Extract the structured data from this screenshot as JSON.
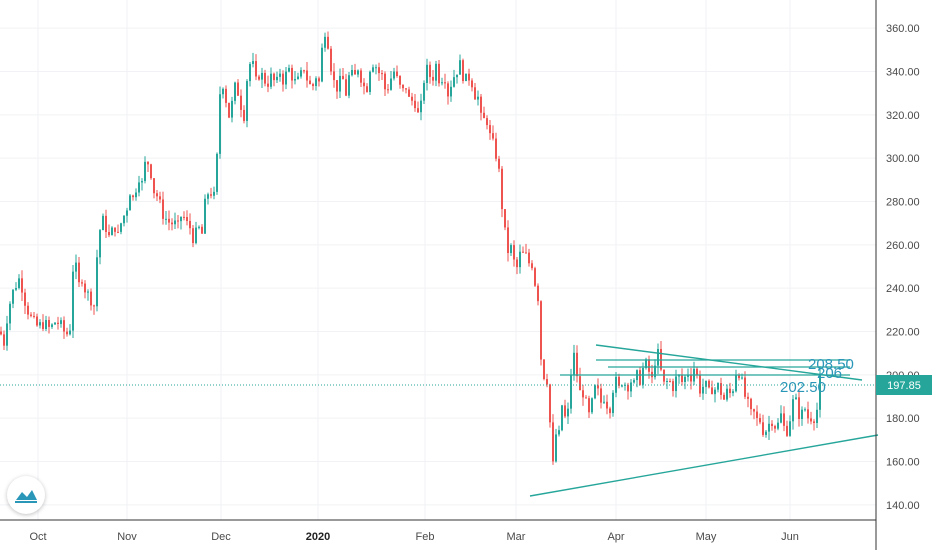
{
  "chart_data": {
    "type": "candlestick",
    "x_ticks": [
      "Oct",
      "Nov",
      "Dec",
      "2020",
      "Feb",
      "Mar",
      "Apr",
      "May",
      "Jun"
    ],
    "x_tick_bold": "2020",
    "y_ticks": [
      "140.00",
      "160.00",
      "180.00",
      "200.00",
      "220.00",
      "240.00",
      "260.00",
      "280.00",
      "300.00",
      "320.00",
      "340.00",
      "360.00"
    ],
    "ylim": [
      133,
      373
    ],
    "last_price": "197.85",
    "grid": true,
    "colors": {
      "up": "#26a69a",
      "down": "#ef5350",
      "line": "#26a69a",
      "annotation": "#2a96b8",
      "price_line": "#26a69a"
    },
    "price_path": [
      [
        0,
        220
      ],
      [
        4,
        215
      ],
      [
        8,
        230
      ],
      [
        14,
        240
      ],
      [
        20,
        245
      ],
      [
        26,
        232
      ],
      [
        32,
        225
      ],
      [
        38,
        222
      ],
      [
        44,
        224
      ],
      [
        50,
        221
      ],
      [
        56,
        225
      ],
      [
        62,
        222
      ],
      [
        66,
        218
      ],
      [
        70,
        222
      ],
      [
        74,
        258
      ],
      [
        78,
        240
      ],
      [
        82,
        245
      ],
      [
        86,
        238
      ],
      [
        90,
        236
      ],
      [
        94,
        232
      ],
      [
        98,
        262
      ],
      [
        102,
        272
      ],
      [
        106,
        268
      ],
      [
        110,
        262
      ],
      [
        114,
        270
      ],
      [
        118,
        264
      ],
      [
        122,
        272
      ],
      [
        126,
        275
      ],
      [
        130,
        285
      ],
      [
        134,
        280
      ],
      [
        138,
        293
      ],
      [
        142,
        288
      ],
      [
        146,
        300
      ],
      [
        150,
        296
      ],
      [
        154,
        285
      ],
      [
        158,
        282
      ],
      [
        162,
        275
      ],
      [
        166,
        272
      ],
      [
        170,
        270
      ],
      [
        174,
        270
      ],
      [
        178,
        268
      ],
      [
        182,
        275
      ],
      [
        186,
        270
      ],
      [
        190,
        268
      ],
      [
        194,
        262
      ],
      [
        198,
        268
      ],
      [
        202,
        265
      ],
      [
        206,
        283
      ],
      [
        210,
        285
      ],
      [
        214,
        282
      ],
      [
        217,
        300
      ],
      [
        220,
        330
      ],
      [
        224,
        336
      ],
      [
        228,
        318
      ],
      [
        232,
        325
      ],
      [
        236,
        335
      ],
      [
        240,
        326
      ],
      [
        244,
        320
      ],
      [
        248,
        342
      ],
      [
        252,
        345
      ],
      [
        256,
        335
      ],
      [
        260,
        340
      ],
      [
        264,
        336
      ],
      [
        268,
        335
      ],
      [
        272,
        338
      ],
      [
        276,
        333
      ],
      [
        280,
        340
      ],
      [
        284,
        335
      ],
      [
        288,
        342
      ],
      [
        292,
        338
      ],
      [
        296,
        334
      ],
      [
        300,
        337
      ],
      [
        304,
        342
      ],
      [
        308,
        335
      ],
      [
        312,
        332
      ],
      [
        316,
        338
      ],
      [
        320,
        334
      ],
      [
        322,
        350
      ],
      [
        326,
        362
      ],
      [
        330,
        345
      ],
      [
        334,
        335
      ],
      [
        338,
        332
      ],
      [
        342,
        338
      ],
      [
        346,
        330
      ],
      [
        350,
        340
      ],
      [
        354,
        336
      ],
      [
        358,
        342
      ],
      [
        362,
        336
      ],
      [
        366,
        330
      ],
      [
        370,
        342
      ],
      [
        374,
        345
      ],
      [
        378,
        340
      ],
      [
        382,
        338
      ],
      [
        386,
        330
      ],
      [
        390,
        336
      ],
      [
        394,
        340
      ],
      [
        398,
        335
      ],
      [
        402,
        330
      ],
      [
        406,
        333
      ],
      [
        410,
        325
      ],
      [
        414,
        328
      ],
      [
        418,
        320
      ],
      [
        422,
        325
      ],
      [
        425,
        342
      ],
      [
        428,
        340
      ],
      [
        432,
        336
      ],
      [
        436,
        343
      ],
      [
        440,
        335
      ],
      [
        444,
        340
      ],
      [
        448,
        330
      ],
      [
        452,
        336
      ],
      [
        456,
        340
      ],
      [
        460,
        343
      ],
      [
        464,
        337
      ],
      [
        468,
        335
      ],
      [
        470,
        340
      ],
      [
        474,
        330
      ],
      [
        478,
        328
      ],
      [
        482,
        315
      ],
      [
        486,
        320
      ],
      [
        490,
        310
      ],
      [
        494,
        305
      ],
      [
        497,
        300
      ],
      [
        500,
        290
      ],
      [
        503,
        272
      ],
      [
        506,
        262
      ],
      [
        509,
        255
      ],
      [
        512,
        260
      ],
      [
        515,
        248
      ],
      [
        518,
        250
      ],
      [
        521,
        258
      ],
      [
        524,
        254
      ],
      [
        527,
        255
      ],
      [
        530,
        250
      ],
      [
        533,
        252
      ],
      [
        536,
        238
      ],
      [
        539,
        235
      ],
      [
        541,
        208
      ],
      [
        544,
        200
      ],
      [
        547,
        198
      ],
      [
        549,
        178
      ],
      [
        551,
        178
      ],
      [
        553,
        158
      ],
      [
        555,
        165
      ],
      [
        557,
        180
      ],
      [
        559,
        172
      ],
      [
        561,
        188
      ],
      [
        564,
        182
      ],
      [
        567,
        176
      ],
      [
        570,
        196
      ],
      [
        572,
        206
      ],
      [
        575,
        210
      ],
      [
        578,
        195
      ],
      [
        581,
        190
      ],
      [
        584,
        193
      ],
      [
        587,
        183
      ],
      [
        590,
        180
      ],
      [
        593,
        190
      ],
      [
        596,
        195
      ],
      [
        599,
        190
      ],
      [
        602,
        186
      ],
      [
        605,
        192
      ],
      [
        608,
        184
      ],
      [
        611,
        186
      ],
      [
        614,
        198
      ],
      [
        617,
        196
      ],
      [
        620,
        192
      ],
      [
        623,
        200
      ],
      [
        626,
        194
      ],
      [
        629,
        196
      ],
      [
        632,
        198
      ],
      [
        635,
        194
      ],
      [
        638,
        202
      ],
      [
        641,
        196
      ],
      [
        644,
        206
      ],
      [
        647,
        204
      ],
      [
        650,
        200
      ],
      [
        653,
        196
      ],
      [
        656,
        212
      ],
      [
        659,
        208
      ],
      [
        662,
        198
      ],
      [
        665,
        194
      ],
      [
        668,
        198
      ],
      [
        671,
        196
      ],
      [
        674,
        194
      ],
      [
        677,
        200
      ],
      [
        680,
        198
      ],
      [
        683,
        196
      ],
      [
        686,
        200
      ],
      [
        689,
        202
      ],
      [
        692,
        198
      ],
      [
        695,
        206
      ],
      [
        698,
        196
      ],
      [
        701,
        192
      ],
      [
        704,
        196
      ],
      [
        707,
        194
      ],
      [
        710,
        190
      ],
      [
        713,
        196
      ],
      [
        716,
        192
      ],
      [
        719,
        196
      ],
      [
        722,
        190
      ],
      [
        725,
        188
      ],
      [
        728,
        194
      ],
      [
        731,
        190
      ],
      [
        734,
        196
      ],
      [
        737,
        204
      ],
      [
        740,
        200
      ],
      [
        743,
        194
      ],
      [
        746,
        188
      ],
      [
        749,
        185
      ],
      [
        752,
        180
      ],
      [
        755,
        183
      ],
      [
        758,
        177
      ],
      [
        761,
        180
      ],
      [
        764,
        172
      ],
      [
        767,
        176
      ],
      [
        770,
        178
      ],
      [
        773,
        180
      ],
      [
        776,
        175
      ],
      [
        779,
        178
      ],
      [
        782,
        183
      ],
      [
        785,
        172
      ],
      [
        788,
        176
      ],
      [
        791,
        182
      ],
      [
        794,
        190
      ],
      [
        797,
        186
      ],
      [
        800,
        180
      ],
      [
        803,
        183
      ],
      [
        806,
        185
      ],
      [
        809,
        178
      ],
      [
        812,
        182
      ],
      [
        815,
        180
      ],
      [
        818,
        186
      ],
      [
        820,
        198
      ]
    ]
  }
}
